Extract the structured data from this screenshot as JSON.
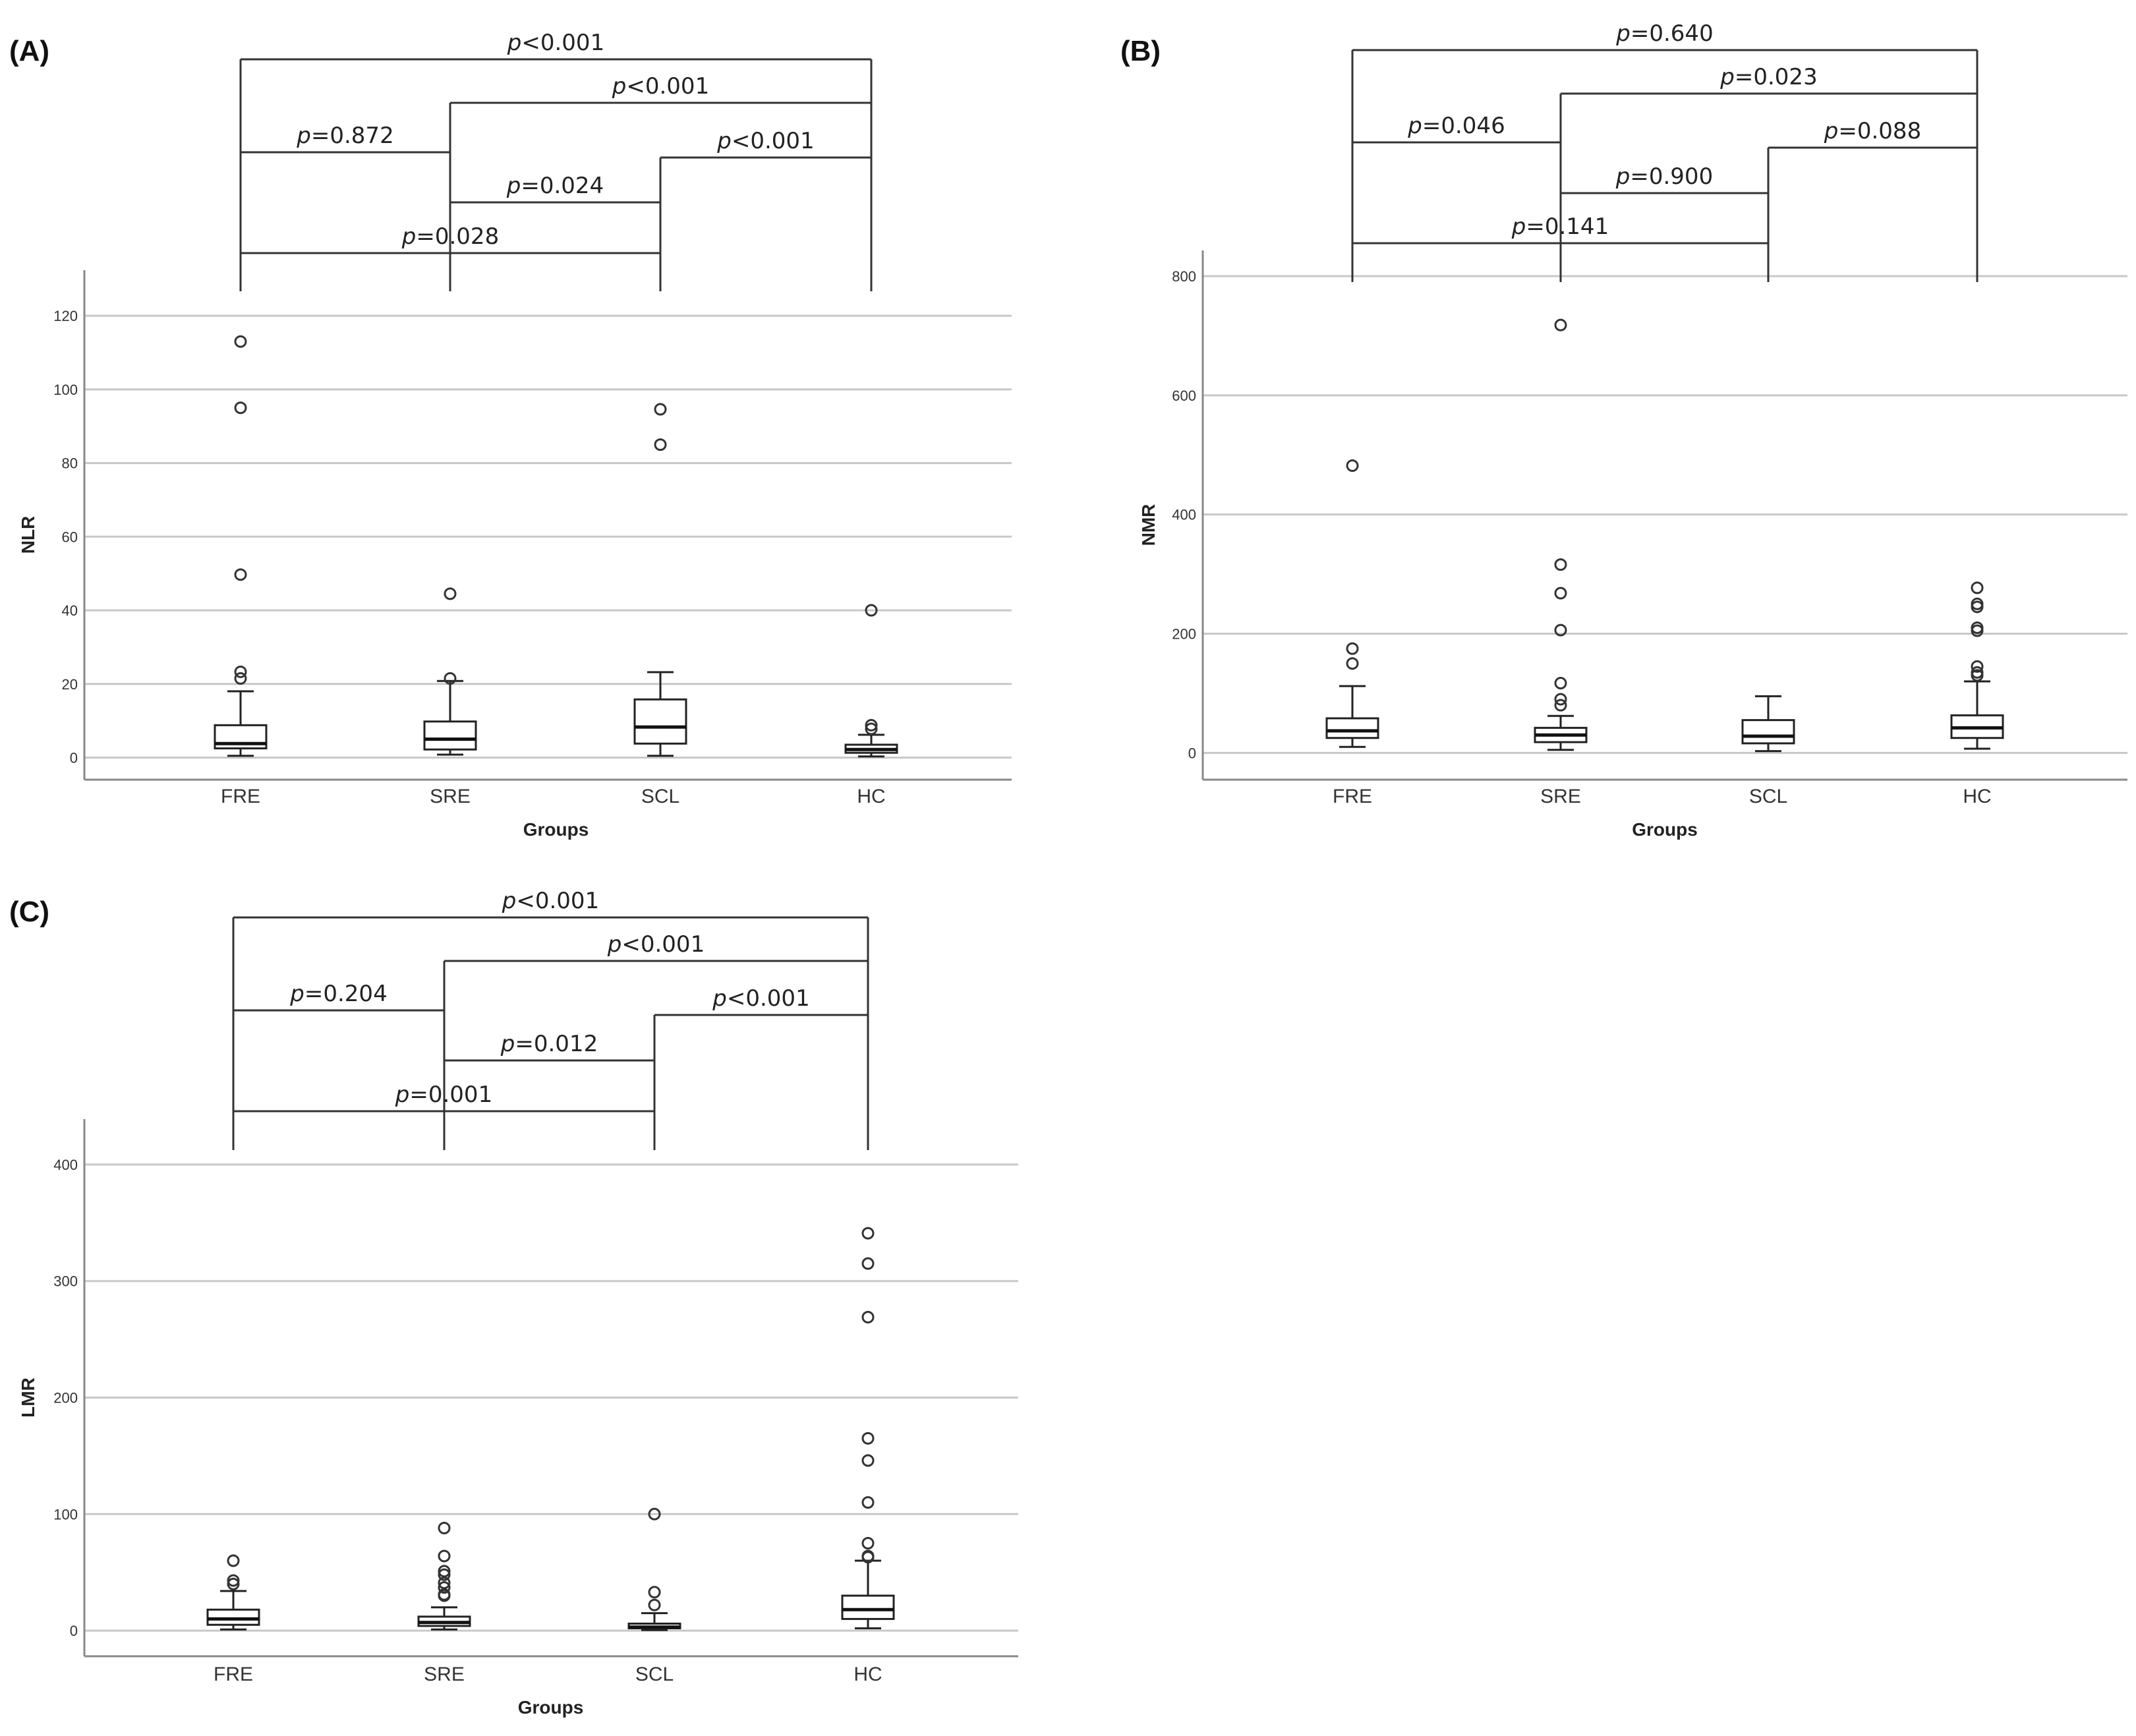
{
  "chart_data": [
    {
      "type": "boxplot",
      "panel_label": "(A)",
      "xlabel": "Groups",
      "ylabel": "NLR",
      "ylim": [
        -6,
        127
      ],
      "yticks": [
        0,
        20,
        40,
        60,
        80,
        100,
        120
      ],
      "grid": true,
      "categories": [
        "FRE",
        "SRE",
        "SCL",
        "HC"
      ],
      "boxes": [
        {
          "whisker_low": 0.5,
          "q1": 2.5,
          "median": 3.8,
          "q3": 8.8,
          "whisker_high": 18,
          "outliers": [
            113,
            95,
            49.7,
            23.3,
            21.5
          ]
        },
        {
          "whisker_low": 0.8,
          "q1": 2.2,
          "median": 5,
          "q3": 9.8,
          "whisker_high": 20.8,
          "outliers": [
            44.5,
            21.5
          ]
        },
        {
          "whisker_low": 0.5,
          "q1": 3.8,
          "median": 8.3,
          "q3": 15.8,
          "whisker_high": 23.2,
          "outliers": [
            94.6,
            85
          ]
        },
        {
          "whisker_low": 0.3,
          "q1": 1.3,
          "median": 2.2,
          "q3": 3.5,
          "whisker_high": 6.2,
          "outliers": [
            40,
            8.8,
            7.8
          ]
        }
      ],
      "comparisons": [
        {
          "from": "FRE",
          "to": "HC",
          "p_prefix": "p",
          "p_value": "<0.001"
        },
        {
          "from": "SRE",
          "to": "HC",
          "p_prefix": "p",
          "p_value": "<0.001"
        },
        {
          "from": "FRE",
          "to": "SRE",
          "p_prefix": "p",
          "p_value": "=0.872"
        },
        {
          "from": "SCL",
          "to": "HC",
          "p_prefix": "p",
          "p_value": "<0.001"
        },
        {
          "from": "SRE",
          "to": "SCL",
          "p_prefix": "p",
          "p_value": "=0.024"
        },
        {
          "from": "FRE",
          "to": "SCL",
          "p_prefix": "p",
          "p_value": "=0.028"
        }
      ]
    },
    {
      "type": "boxplot",
      "panel_label": "(B)",
      "xlabel": "Groups",
      "ylabel": "NMR",
      "ylim": [
        -45,
        810
      ],
      "yticks": [
        0,
        200,
        400,
        600,
        800
      ],
      "grid": true,
      "categories": [
        "FRE",
        "SRE",
        "SCL",
        "HC"
      ],
      "boxes": [
        {
          "whisker_low": 10,
          "q1": 25,
          "median": 37,
          "q3": 58,
          "whisker_high": 112,
          "outliers": [
            482,
            175,
            150
          ]
        },
        {
          "whisker_low": 5,
          "q1": 18,
          "median": 30,
          "q3": 42,
          "whisker_high": 62,
          "outliers": [
            718,
            316,
            268,
            206,
            117,
            90,
            80
          ]
        },
        {
          "whisker_low": 3,
          "q1": 16,
          "median": 28,
          "q3": 55,
          "whisker_high": 95,
          "outliers": []
        },
        {
          "whisker_low": 7,
          "q1": 25,
          "median": 42,
          "q3": 63,
          "whisker_high": 120,
          "outliers": [
            277,
            250,
            245,
            210,
            205,
            145,
            135,
            130
          ]
        }
      ],
      "comparisons": [
        {
          "from": "FRE",
          "to": "HC",
          "p_prefix": "p",
          "p_value": "=0.640"
        },
        {
          "from": "SRE",
          "to": "HC",
          "p_prefix": "p",
          "p_value": "=0.023"
        },
        {
          "from": "FRE",
          "to": "SRE",
          "p_prefix": "p",
          "p_value": "=0.046"
        },
        {
          "from": "SCL",
          "to": "HC",
          "p_prefix": "p",
          "p_value": "=0.088"
        },
        {
          "from": "SRE",
          "to": "SCL",
          "p_prefix": "p",
          "p_value": "=0.900"
        },
        {
          "from": "FRE",
          "to": "SCL",
          "p_prefix": "p",
          "p_value": "=0.141"
        }
      ]
    },
    {
      "type": "boxplot",
      "panel_label": "(C)",
      "xlabel": "Groups",
      "ylabel": "LMR",
      "ylim": [
        -22,
        422
      ],
      "yticks": [
        0,
        100,
        200,
        300,
        400
      ],
      "grid": true,
      "categories": [
        "FRE",
        "SRE",
        "SCL",
        "HC"
      ],
      "boxes": [
        {
          "whisker_low": 1,
          "q1": 5,
          "median": 10,
          "q3": 18,
          "whisker_high": 34,
          "outliers": [
            60,
            43,
            40
          ]
        },
        {
          "whisker_low": 1,
          "q1": 4,
          "median": 7,
          "q3": 12,
          "whisker_high": 20,
          "outliers": [
            88,
            64,
            51,
            48,
            41,
            37,
            31,
            30
          ]
        },
        {
          "whisker_low": 0.5,
          "q1": 2,
          "median": 3,
          "q3": 6,
          "whisker_high": 15,
          "outliers": [
            100,
            33,
            22
          ]
        },
        {
          "whisker_low": 2,
          "q1": 10,
          "median": 18,
          "q3": 30,
          "whisker_high": 60,
          "outliers": [
            341,
            315,
            269,
            165,
            146,
            110,
            75,
            64,
            63
          ]
        }
      ],
      "comparisons": [
        {
          "from": "FRE",
          "to": "HC",
          "p_prefix": "p",
          "p_value": "<0.001"
        },
        {
          "from": "SRE",
          "to": "HC",
          "p_prefix": "p",
          "p_value": "<0.001"
        },
        {
          "from": "FRE",
          "to": "SRE",
          "p_prefix": "p",
          "p_value": "=0.204"
        },
        {
          "from": "SCL",
          "to": "HC",
          "p_prefix": "p",
          "p_value": "<0.001"
        },
        {
          "from": "SRE",
          "to": "SCL",
          "p_prefix": "p",
          "p_value": "=0.012"
        },
        {
          "from": "FRE",
          "to": "SCL",
          "p_prefix": "p",
          "p_value": "=0.001"
        }
      ]
    }
  ]
}
